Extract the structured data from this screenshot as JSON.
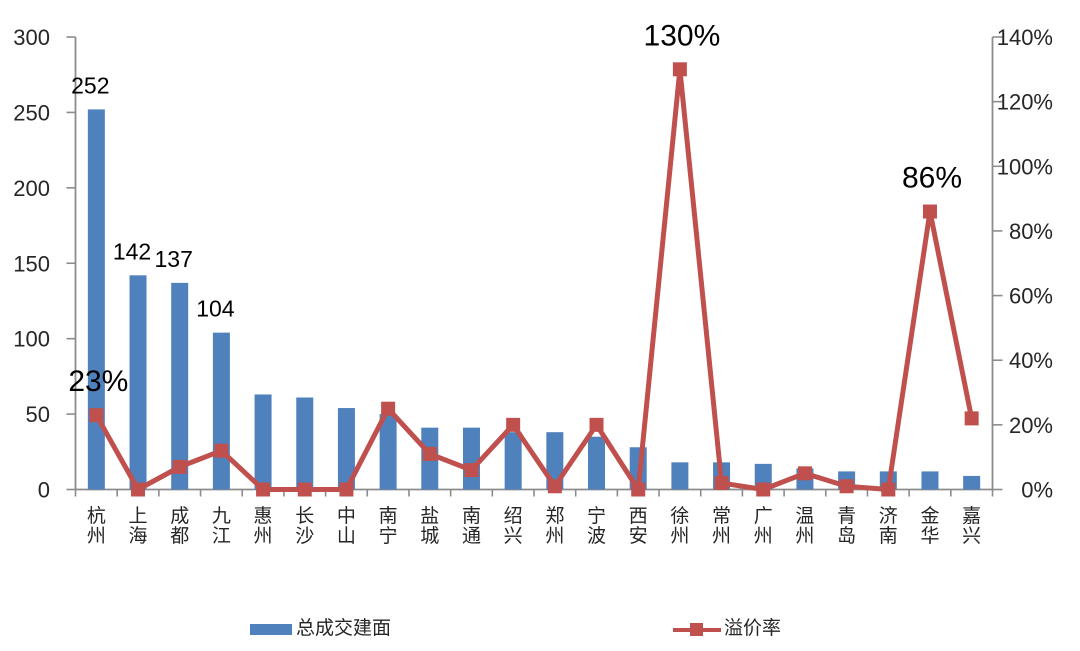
{
  "chart_data": {
    "type": "bar",
    "subtype": "combo-bar-line-dual-axis",
    "title": "",
    "categories": [
      "杭州",
      "上海",
      "成都",
      "九江",
      "惠州",
      "长沙",
      "中山",
      "南宁",
      "盐城",
      "南通",
      "绍兴",
      "郑州",
      "宁波",
      "西安",
      "徐州",
      "常州",
      "广州",
      "温州",
      "青岛",
      "济南",
      "金华",
      "嘉兴"
    ],
    "series": [
      {
        "name": "总成交建面",
        "type": "bar",
        "axis": "left",
        "values": [
          252,
          142,
          137,
          104,
          63,
          61,
          54,
          50,
          41,
          41,
          38,
          38,
          35,
          28,
          18,
          18,
          17,
          14,
          12,
          12,
          12,
          9
        ]
      },
      {
        "name": "溢价率",
        "type": "line",
        "axis": "right",
        "unit": "%",
        "values": [
          23,
          0,
          7,
          12,
          0,
          0,
          0,
          25,
          11,
          6,
          20,
          1,
          20,
          0,
          130,
          2,
          0,
          5,
          1,
          0,
          86,
          22
        ]
      }
    ],
    "bar_labels": [
      {
        "index": 0,
        "text": "252"
      },
      {
        "index": 1,
        "text": "142"
      },
      {
        "index": 2,
        "text": "137"
      },
      {
        "index": 3,
        "text": "104"
      }
    ],
    "line_labels": [
      {
        "index": 0,
        "text": "23%"
      },
      {
        "index": 14,
        "text": "130%"
      },
      {
        "index": 20,
        "text": "86%"
      }
    ],
    "left_axis": {
      "min": 0,
      "max": 300,
      "step": 50,
      "ticks": [
        "300",
        "250",
        "200",
        "150",
        "100",
        "50",
        "0"
      ]
    },
    "right_axis": {
      "min": 0,
      "max": 140,
      "step": 20,
      "ticks": [
        "140%",
        "120%",
        "100%",
        "80%",
        "60%",
        "40%",
        "20%",
        "0%"
      ]
    },
    "legend": [
      {
        "label": "总成交建面",
        "type": "bar",
        "color": "#4F81BD"
      },
      {
        "label": "溢价率",
        "type": "line",
        "color": "#C0504D"
      }
    ],
    "colors": {
      "bar": "#4F81BD",
      "line": "#C0504D",
      "axis": "#8C8C8C",
      "tick_text": "#262626",
      "data_label_text": "#000000",
      "background": "#FFFFFF"
    },
    "layout_hints": {
      "grid": "off",
      "legend_position": "bottom"
    }
  }
}
